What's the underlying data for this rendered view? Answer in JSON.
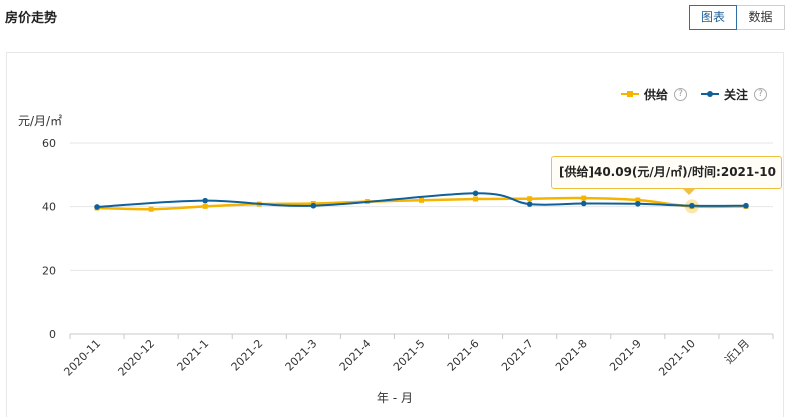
{
  "page": {
    "title": "房价走势"
  },
  "view_toggle": {
    "chart_label": "图表",
    "data_label": "数据",
    "active": "chart"
  },
  "legend": {
    "items": [
      {
        "label": "供给",
        "color": "#f5b400",
        "marker": "square"
      },
      {
        "label": "关注",
        "color": "#10609a",
        "marker": "circle"
      }
    ]
  },
  "tooltip": {
    "text": "[供给]40.09(元/月/㎡)/时间:2021-10"
  },
  "chart_data": {
    "type": "line",
    "title": "房价走势",
    "ylabel": "元/月/㎡",
    "xlabel": "年 - 月",
    "ylim": [
      0,
      60
    ],
    "yticks": [
      0,
      20,
      40,
      60
    ],
    "grid": true,
    "legend_position": "top-right",
    "categories": [
      "2020-11",
      "2020-12",
      "2021-1",
      "2021-2",
      "2021-3",
      "2021-4",
      "2021-5",
      "2021-6",
      "2021-7",
      "2021-8",
      "2021-9",
      "2021-10",
      "近1月"
    ],
    "series": [
      {
        "name": "供给",
        "color": "#f5b400",
        "marker": "square",
        "values": [
          39.6,
          39.2,
          40.1,
          40.8,
          41.0,
          41.6,
          42.0,
          42.4,
          42.5,
          42.7,
          42.1,
          40.09,
          40.1
        ]
      },
      {
        "name": "关注",
        "color": "#10609a",
        "marker": "circle",
        "values": [
          39.9,
          null,
          41.9,
          null,
          40.3,
          null,
          null,
          44.2,
          40.8,
          41.0,
          40.9,
          40.3,
          40.3
        ]
      }
    ],
    "highlight": {
      "series": "供给",
      "category": "2021-10",
      "value": 40.09
    }
  }
}
